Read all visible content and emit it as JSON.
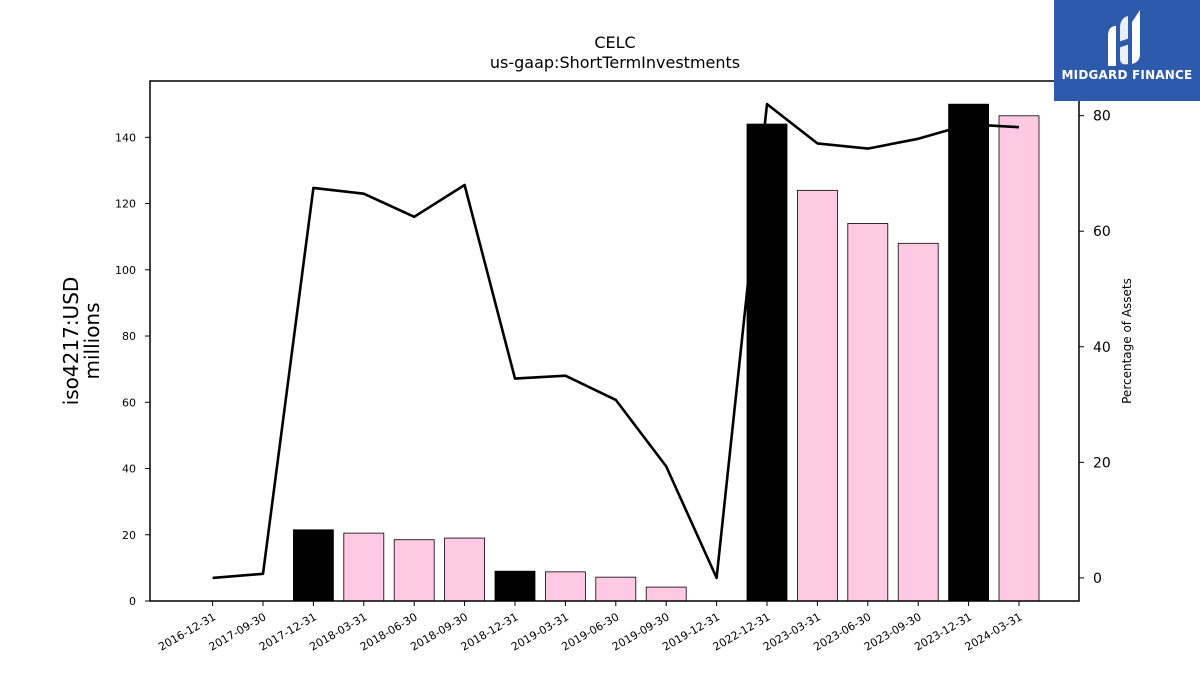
{
  "chart_data": {
    "type": "bar",
    "title": "CELC",
    "subtitle": "us-gaap:ShortTermInvestments",
    "ylabel": "iso4217:USD",
    "ylabel_units": "millions",
    "y2label": "Percentage of Assets",
    "categories": [
      "2016-12-31",
      "2017-09-30",
      "2017-12-31",
      "2018-03-31",
      "2018-06-30",
      "2018-09-30",
      "2018-12-31",
      "2019-03-31",
      "2019-06-30",
      "2019-09-30",
      "2019-12-31",
      "2022-12-31",
      "2023-03-31",
      "2023-06-30",
      "2023-09-30",
      "2023-12-31",
      "2024-03-31"
    ],
    "bars": {
      "values": [
        0,
        0,
        21.5,
        20.5,
        18.5,
        19.0,
        9.0,
        8.8,
        7.2,
        4.2,
        0,
        144.0,
        124.0,
        114.0,
        108.0,
        150.0,
        146.5
      ],
      "colors": [
        "#000000",
        "#000000",
        "#000000",
        "#ffc8e3",
        "#ffc8e3",
        "#ffc8e3",
        "#000000",
        "#ffc8e3",
        "#ffc8e3",
        "#ffc8e3",
        "#000000",
        "#000000",
        "#ffc8e3",
        "#ffc8e3",
        "#ffc8e3",
        "#000000",
        "#ffc8e3"
      ]
    },
    "line": {
      "values": [
        0,
        0.7,
        67.5,
        66.5,
        62.5,
        68.0,
        34.5,
        35.0,
        30.8,
        19.3,
        0,
        82.0,
        75.2,
        74.3,
        76.0,
        78.5,
        78.0
      ],
      "color": "#000000"
    },
    "ylim": [
      0,
      157
    ],
    "y2lim": [
      -4,
      86
    ],
    "yticks": [
      0,
      20,
      40,
      60,
      80,
      100,
      120,
      140
    ],
    "y2ticks": [
      0,
      20,
      40,
      60,
      80
    ],
    "grid": false
  },
  "brand": {
    "name": "MIDGARD FINANCE",
    "color": "#2e5aab"
  }
}
